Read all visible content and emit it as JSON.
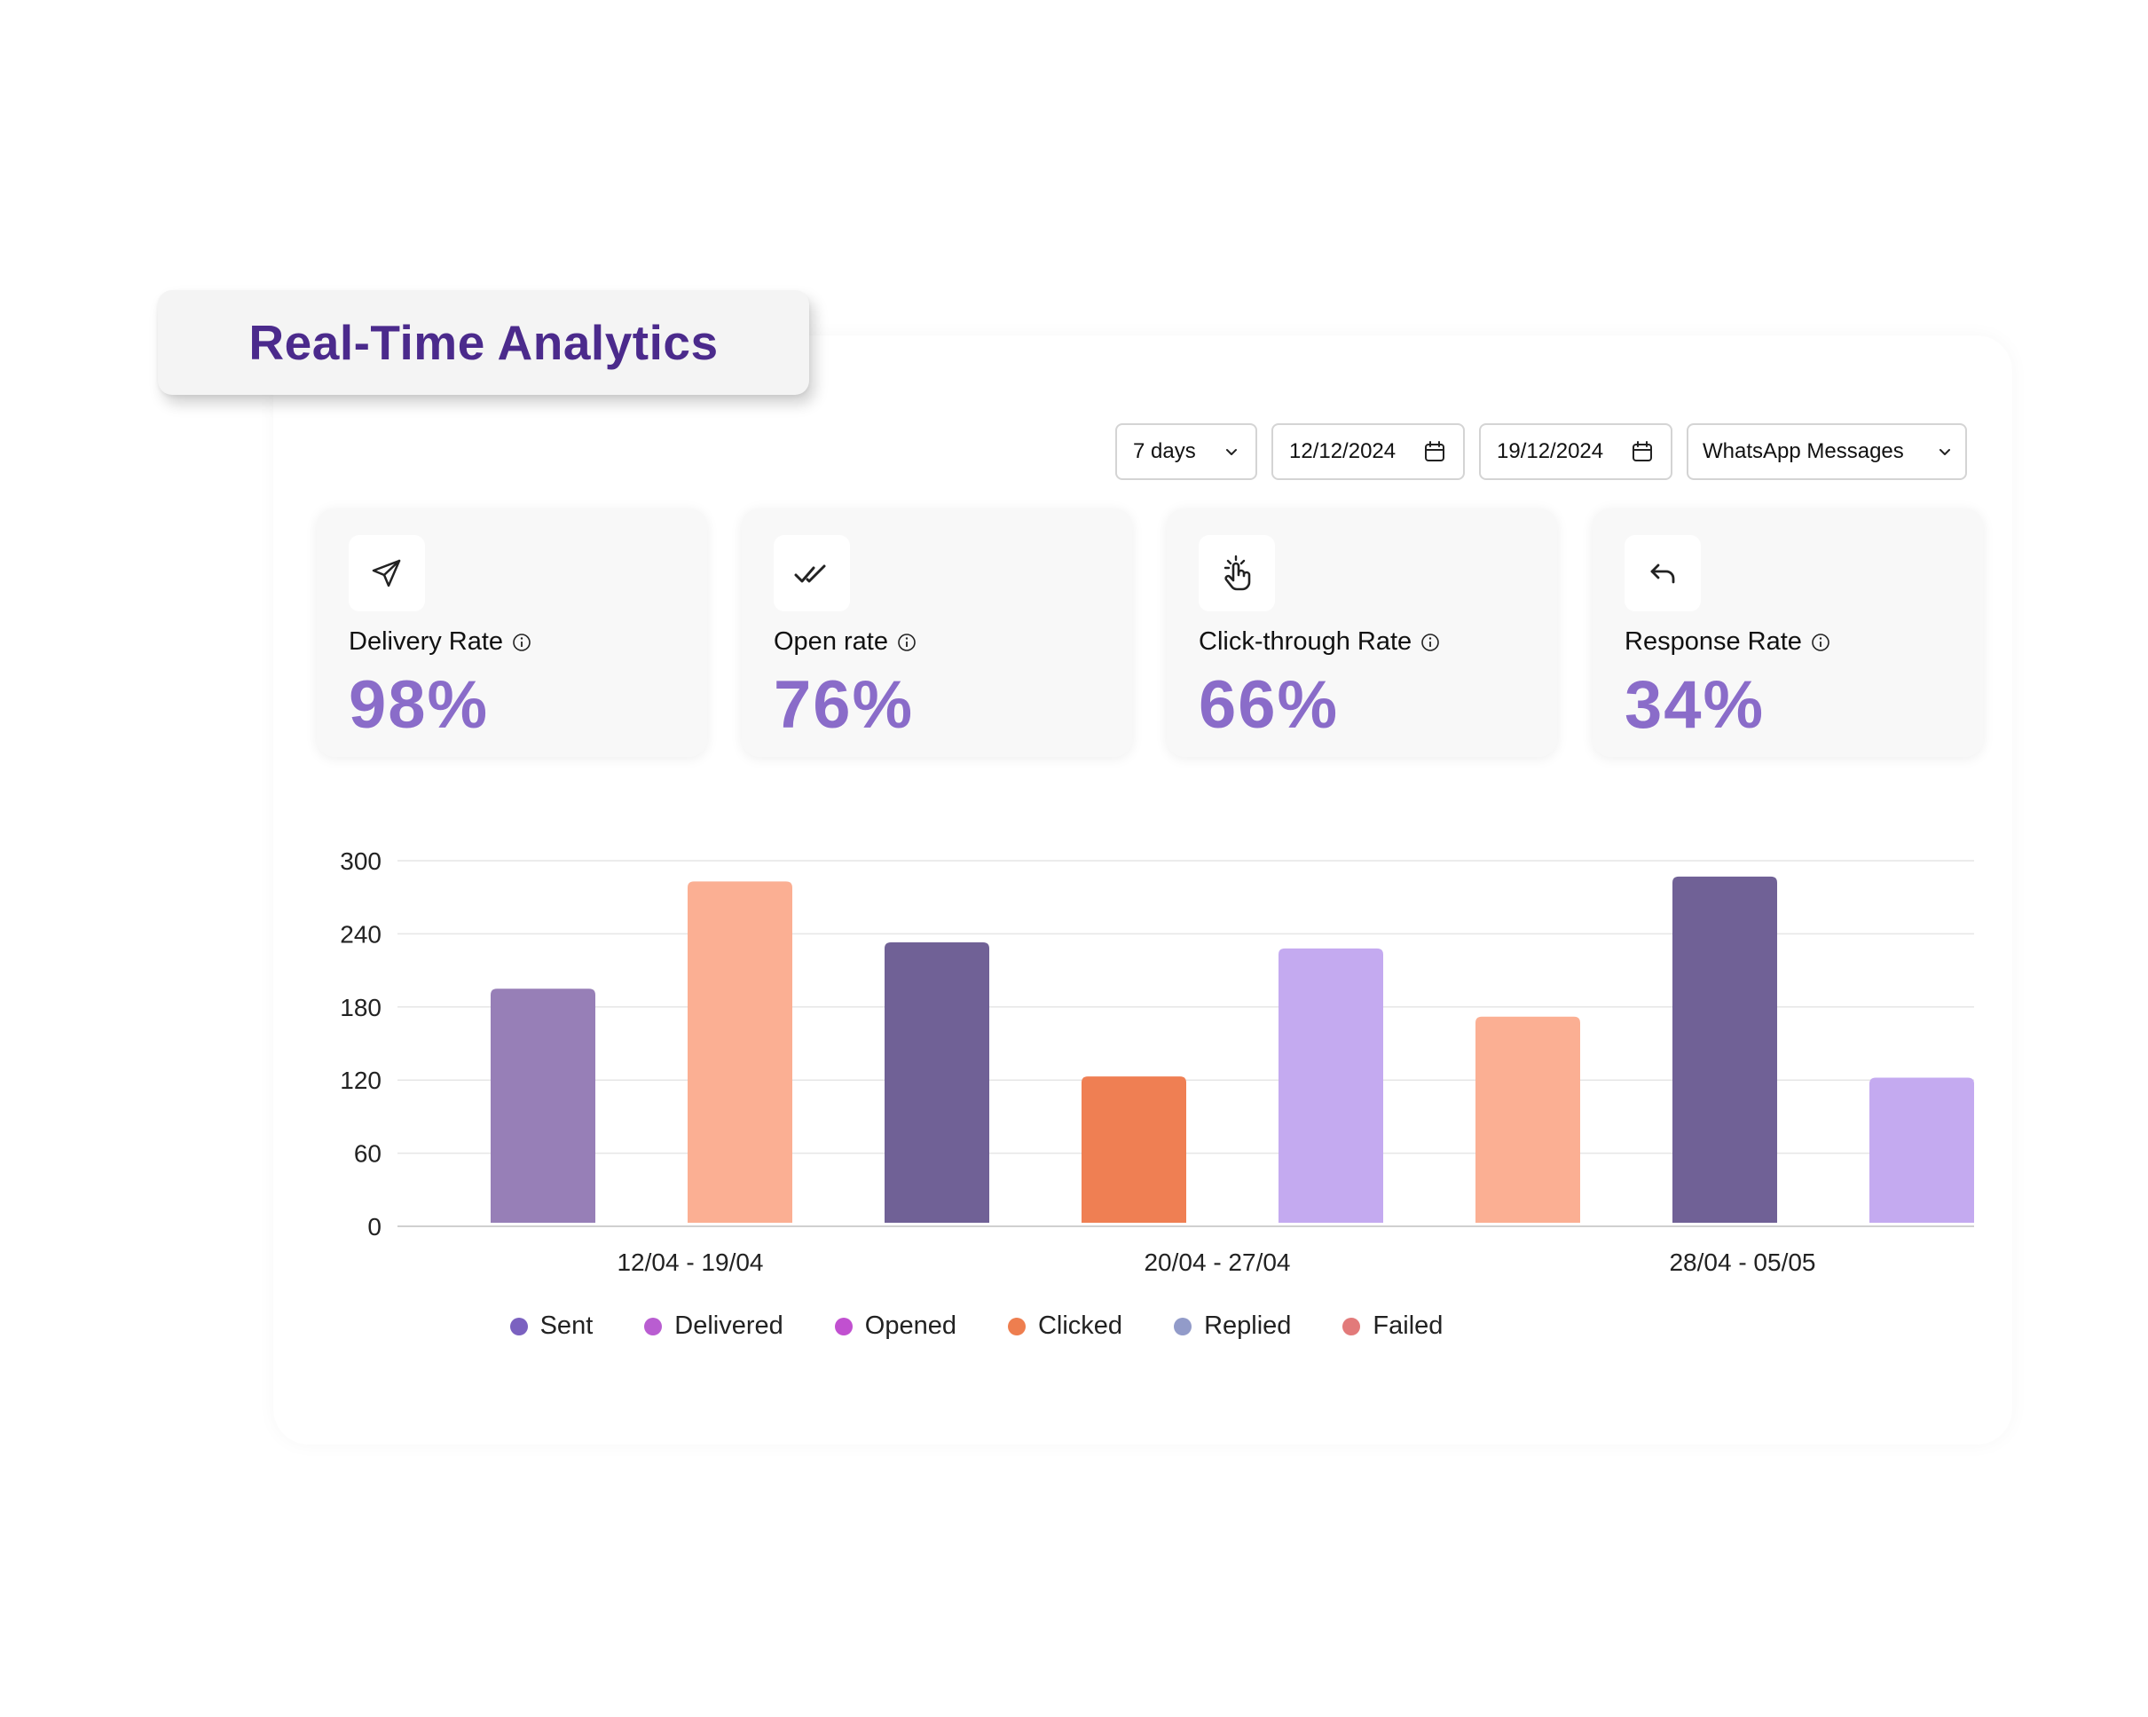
{
  "title": "Real-Time Analytics",
  "filters": {
    "range": "7 days",
    "start_date": "12/12/2024",
    "end_date": "19/12/2024",
    "channel": "WhatsApp Messages"
  },
  "metrics": [
    {
      "label": "Delivery Rate",
      "value": "98%",
      "icon": "send-icon"
    },
    {
      "label": "Open rate",
      "value": "76%",
      "icon": "double-check-icon"
    },
    {
      "label": "Click-through Rate",
      "value": "66%",
      "icon": "tap-hand-icon"
    },
    {
      "label": "Response Rate",
      "value": "34%",
      "icon": "reply-icon"
    }
  ],
  "colors": {
    "title": "#4b2a8c",
    "metric_value": "#8a6cc9",
    "sent": "#7b61c0",
    "delivered": "#b95dd1",
    "opened": "#c150d0",
    "clicked": "#ee7e4f",
    "replied": "#929bc9",
    "failed": "#e27a7a"
  },
  "chart_data": {
    "type": "bar",
    "yticks": [
      0,
      60,
      120,
      180,
      240,
      300
    ],
    "ylim": [
      0,
      300
    ],
    "groups": [
      "12/04 - 19/04",
      "20/04 - 27/04",
      "28/04 - 05/05"
    ],
    "bars": [
      {
        "group": 0,
        "value": 195,
        "color": "#977fb7"
      },
      {
        "group": 0,
        "value": 283,
        "color": "#fbaf93"
      },
      {
        "group": 0,
        "value": 233,
        "color": "#706196"
      },
      {
        "group": 1,
        "value": 123,
        "color": "#ef7f53"
      },
      {
        "group": 1,
        "value": 228,
        "color": "#c4aaf0"
      },
      {
        "group": 1,
        "value": 172,
        "color": "#fbaf93"
      },
      {
        "group": 2,
        "value": 287,
        "color": "#706196"
      },
      {
        "group": 2,
        "value": 122,
        "color": "#c4aaf0"
      }
    ],
    "legend": [
      {
        "name": "Sent",
        "color": "#7b61c0"
      },
      {
        "name": "Delivered",
        "color": "#b95dd1"
      },
      {
        "name": "Opened",
        "color": "#c150d0"
      },
      {
        "name": "Clicked",
        "color": "#ee7e4f"
      },
      {
        "name": "Replied",
        "color": "#929bc9"
      },
      {
        "name": "Failed",
        "color": "#e27a7a"
      }
    ]
  }
}
